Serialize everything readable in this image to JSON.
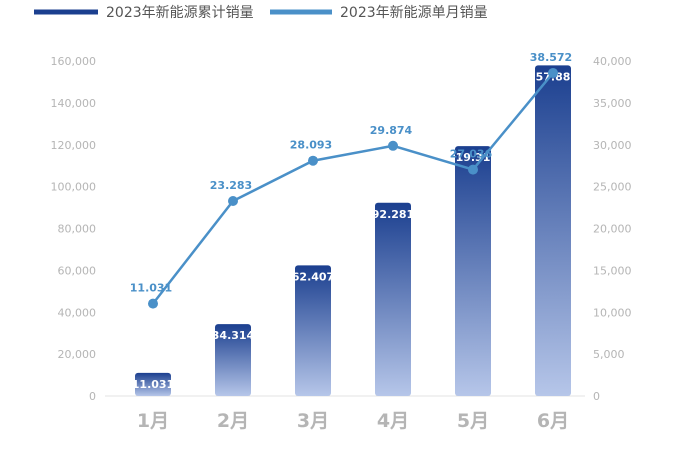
{
  "chart_data": {
    "type": "bar+line",
    "categories": [
      "1月",
      "2月",
      "3月",
      "4月",
      "5月",
      "6月"
    ],
    "series": [
      {
        "name": "2023年新能源累计销量",
        "type": "bar",
        "axis": "left",
        "values": [
          11031,
          34314,
          62407,
          92281,
          119317,
          157889
        ],
        "labels": [
          "11.031",
          "34.314",
          "62.407",
          "92.281",
          "119.317",
          "157.889"
        ],
        "color": "#1b3f8f",
        "color_light": "#b6c6e9"
      },
      {
        "name": "2023年新能源单月销量",
        "type": "line",
        "axis": "right",
        "values": [
          11031,
          23283,
          28093,
          29874,
          27036,
          38572
        ],
        "labels": [
          "11.031",
          "23.283",
          "28.093",
          "29.874",
          "27.036",
          "38.572"
        ],
        "color": "#4a90c8"
      }
    ],
    "left_axis": {
      "ylim": [
        0,
        160000
      ],
      "ticks": [
        "0",
        "20,000",
        "40,000",
        "60,000",
        "80,000",
        "100,000",
        "120,000",
        "140,000",
        "160,000"
      ]
    },
    "right_axis": {
      "ylim": [
        0,
        40000
      ],
      "ticks": [
        "0",
        "5,000",
        "10,000",
        "15,000",
        "20,000",
        "25,000",
        "30,000",
        "35,000",
        "40,000"
      ]
    },
    "legend_position": "top-left",
    "grid": false
  }
}
